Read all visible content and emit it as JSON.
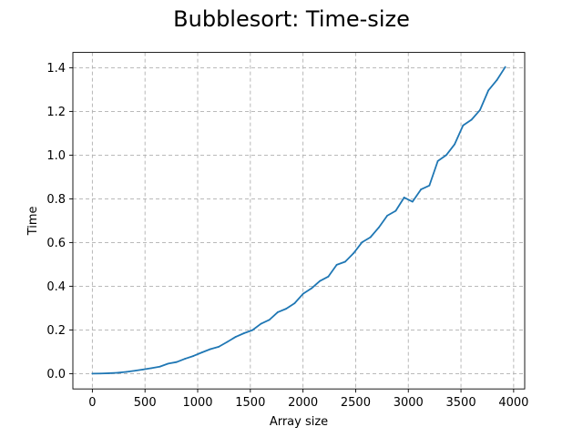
{
  "chart_data": {
    "type": "line",
    "title": "Bubblesort: Time-size",
    "xlabel": "Array size",
    "ylabel": "Time",
    "xlim": [
      -185,
      4105
    ],
    "ylim": [
      -0.07,
      1.47
    ],
    "xticks": [
      0,
      500,
      1000,
      1500,
      2000,
      2500,
      3000,
      3500,
      4000
    ],
    "xtick_labels": [
      "0",
      "500",
      "1000",
      "1500",
      "2000",
      "2500",
      "3000",
      "3500",
      "4000"
    ],
    "yticks": [
      0.0,
      0.2,
      0.4,
      0.6,
      0.8,
      1.0,
      1.2,
      1.4
    ],
    "ytick_labels": [
      "0.0",
      "0.2",
      "0.4",
      "0.6",
      "0.8",
      "1.0",
      "1.2",
      "1.4"
    ],
    "grid": true,
    "series_color": "#1f77b4",
    "series": [
      {
        "x": [
          0,
          80,
          160,
          240,
          320,
          400,
          480,
          560,
          640,
          720,
          800,
          880,
          960,
          1040,
          1120,
          1200,
          1280,
          1360,
          1440,
          1520,
          1600,
          1680,
          1760,
          1840,
          1920,
          2000,
          2080,
          2160,
          2240,
          2320,
          2400,
          2480,
          2560,
          2640,
          2720,
          2800,
          2880,
          2960,
          3040,
          3120,
          3200,
          3280,
          3360,
          3440,
          3520,
          3600,
          3680,
          3760,
          3840,
          3920
        ],
        "values": [
          0.0,
          0.0007,
          0.002,
          0.004,
          0.008,
          0.013,
          0.019,
          0.025,
          0.032,
          0.046,
          0.053,
          0.068,
          0.081,
          0.097,
          0.112,
          0.123,
          0.145,
          0.168,
          0.185,
          0.199,
          0.228,
          0.246,
          0.281,
          0.297,
          0.322,
          0.365,
          0.39,
          0.424,
          0.444,
          0.498,
          0.512,
          0.551,
          0.601,
          0.624,
          0.669,
          0.723,
          0.745,
          0.806,
          0.787,
          0.843,
          0.861,
          0.973,
          1.0,
          1.05,
          1.136,
          1.162,
          1.206,
          1.296,
          1.343,
          1.403
        ]
      }
    ]
  }
}
